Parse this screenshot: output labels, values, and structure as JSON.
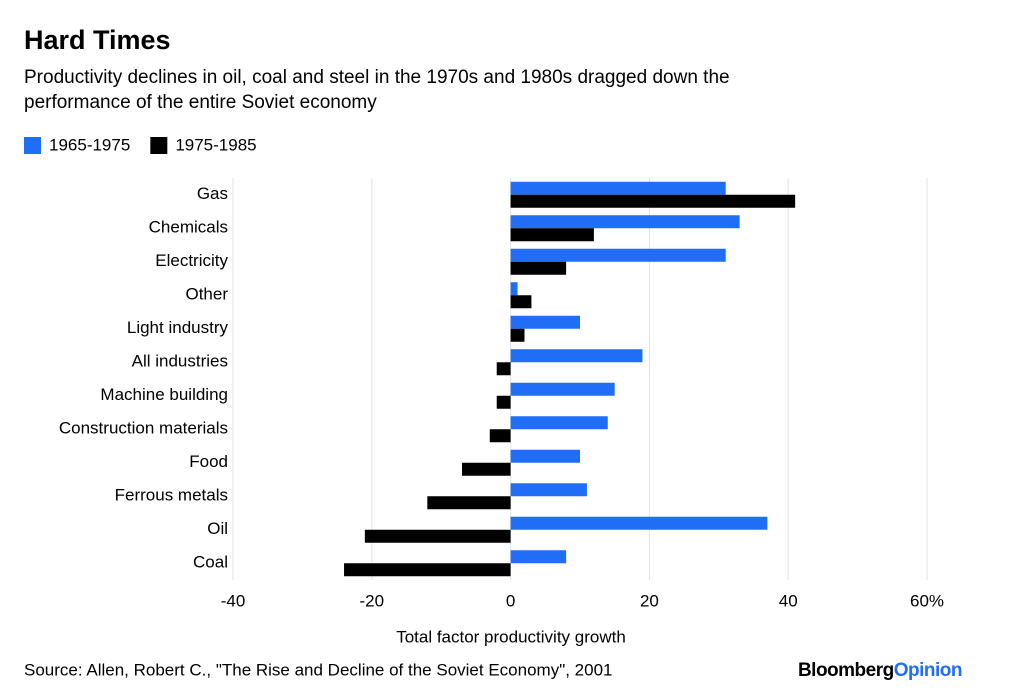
{
  "chart_data": {
    "type": "hbar",
    "title": "Hard Times",
    "subtitle": [
      "Productivity declines in oil, coal and steel in the 1970s and 1980s dragged down the",
      "performance of the entire Soviet economy"
    ],
    "categories": [
      "Gas",
      "Chemicals",
      "Electricity",
      "Other",
      "Light industry",
      "All industries",
      "Machine building",
      "Construction materials",
      "Food",
      "Ferrous metals",
      "Oil",
      "Coal"
    ],
    "series": [
      {
        "name": "1965-1975",
        "color": "#1f6ef5",
        "values": [
          31,
          33,
          31,
          1,
          10,
          19,
          15,
          14,
          10,
          11,
          37,
          8
        ]
      },
      {
        "name": "1975-1985",
        "color": "#000000",
        "values": [
          41,
          12,
          8,
          3,
          2,
          -2,
          -2,
          -3,
          -7,
          -12,
          -21,
          -24
        ]
      }
    ],
    "xlim": [
      -40,
      60
    ],
    "xticks": [
      -40,
      -20,
      0,
      20,
      40,
      {
        "value": 60,
        "label": "60%"
      }
    ],
    "xlabel": "Total factor productivity growth",
    "grid": true,
    "legend": "top-left",
    "source": "Source: Allen, Robert C., \"The Rise and Decline of the Soviet Economy\", 2001",
    "logo": {
      "part1": "Bloomberg",
      "part2": "Opinion"
    }
  }
}
